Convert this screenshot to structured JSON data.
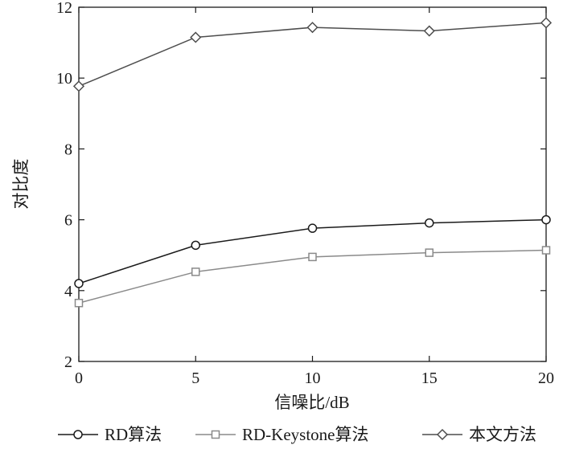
{
  "chart_data": {
    "type": "line",
    "title": "",
    "xlabel": "信噪比/dB",
    "ylabel": "对比度",
    "x": [
      0,
      5,
      10,
      15,
      20
    ],
    "xlim": [
      0,
      20
    ],
    "ylim": [
      2,
      12
    ],
    "xticks": [
      "0",
      "5",
      "10",
      "15",
      "20"
    ],
    "yticks": [
      "2",
      "4",
      "6",
      "8",
      "10",
      "12"
    ],
    "grid": false,
    "legend_position": "bottom",
    "series": [
      {
        "name": "RD算法",
        "marker": "circle",
        "color": "#1a1a1a",
        "values": [
          4.2,
          5.28,
          5.76,
          5.91,
          6.0
        ]
      },
      {
        "name": "RD-Keystone算法",
        "marker": "square",
        "color": "#8a8a8a",
        "values": [
          3.65,
          4.53,
          4.95,
          5.07,
          5.14
        ]
      },
      {
        "name": "本文方法",
        "marker": "diamond",
        "color": "#4d4d4d",
        "values": [
          9.77,
          11.15,
          11.43,
          11.33,
          11.56
        ]
      }
    ]
  }
}
